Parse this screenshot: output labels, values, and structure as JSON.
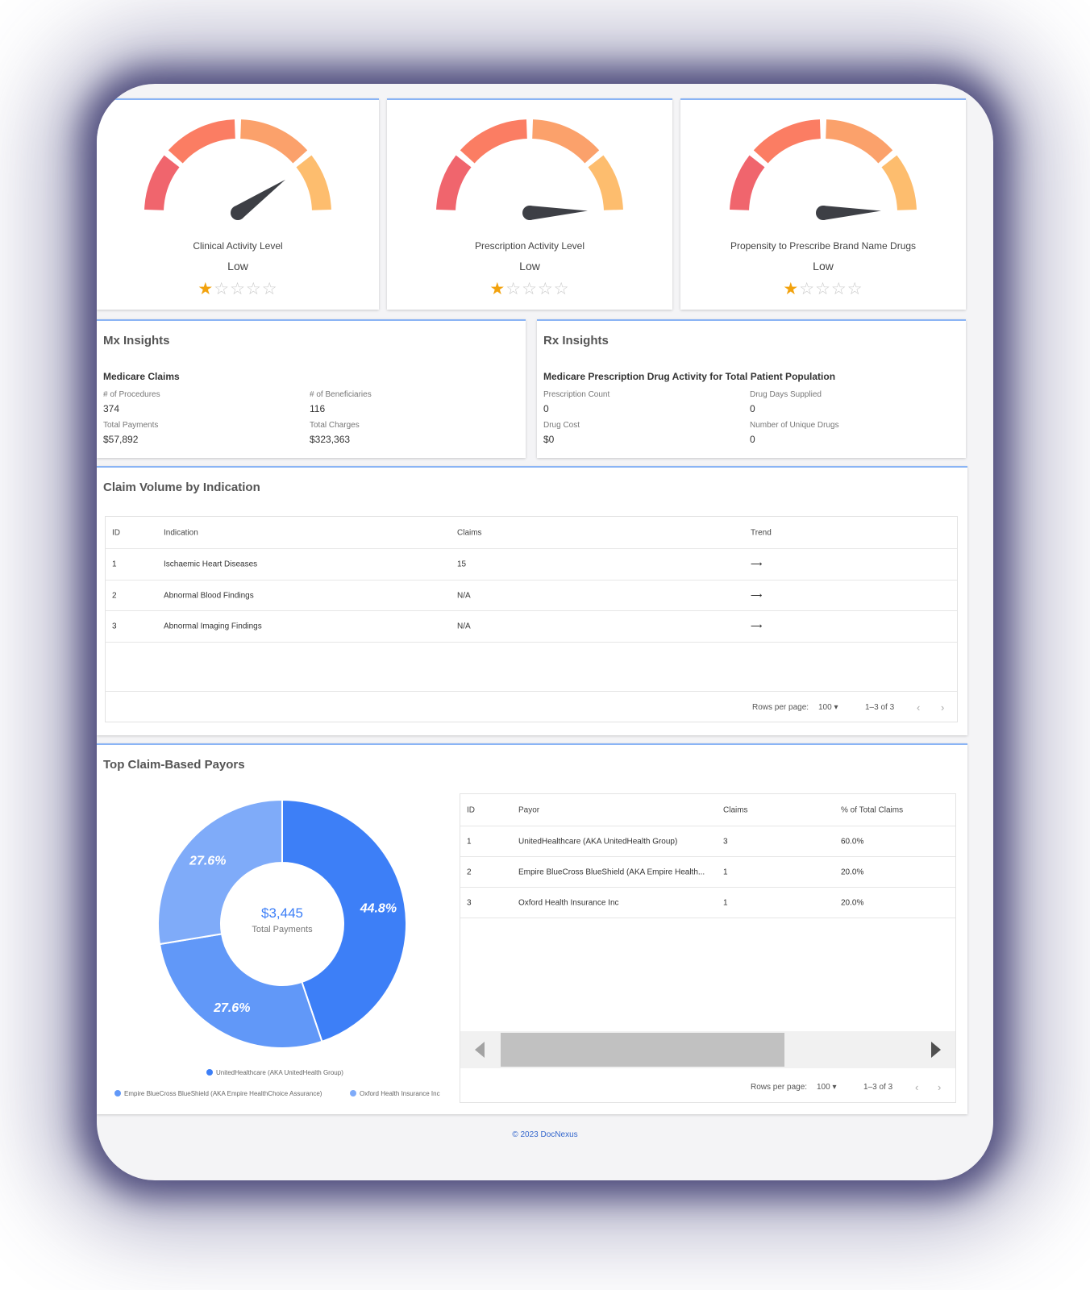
{
  "gauges": [
    {
      "title": "Clinical Activity Level",
      "level": "Low",
      "rating": 1,
      "max_rating": 5,
      "needle_angle_deg": 145
    },
    {
      "title": "Prescription Activity Level",
      "level": "Low",
      "rating": 1,
      "max_rating": 5,
      "needle_angle_deg": 178
    },
    {
      "title": "Propensity to Prescribe Brand Name Drugs",
      "level": "Low",
      "rating": 1,
      "max_rating": 5,
      "needle_angle_deg": 178
    }
  ],
  "mx": {
    "title": "Mx Insights",
    "subtitle": "Medicare Claims",
    "procedures_label": "# of Procedures",
    "procedures_value": "374",
    "beneficiaries_label": "# of Beneficiaries",
    "beneficiaries_value": "116",
    "payments_label": "Total Payments",
    "payments_value": "$57,892",
    "charges_label": "Total Charges",
    "charges_value": "$323,363"
  },
  "rx": {
    "title": "Rx Insights",
    "subtitle": "Medicare Prescription Drug Activity for Total Patient Population",
    "rx_count_label": "Prescription Count",
    "rx_count_value": "0",
    "days_label": "Drug Days Supplied",
    "days_value": "0",
    "cost_label": "Drug Cost",
    "cost_value": "$0",
    "unique_label": "Number of Unique Drugs",
    "unique_value": "0"
  },
  "claims": {
    "title": "Claim Volume by Indication",
    "headers": {
      "id": "ID",
      "indication": "Indication",
      "claims": "Claims",
      "trend": "Trend"
    },
    "rows": [
      {
        "id": "1",
        "indication": "Ischaemic Heart Diseases",
        "claims": "15",
        "trend": "⟶"
      },
      {
        "id": "2",
        "indication": "Abnormal Blood Findings",
        "claims": "N/A",
        "trend": "⟶"
      },
      {
        "id": "3",
        "indication": "Abnormal Imaging Findings",
        "claims": "N/A",
        "trend": "⟶"
      }
    ],
    "rows_per_page_label": "Rows per page:",
    "rows_per_page_value": "100",
    "range": "1–3 of 3"
  },
  "payors": {
    "title": "Top Claim-Based Payors",
    "center_value": "$3,445",
    "center_label": "Total Payments",
    "headers": {
      "id": "ID",
      "payor": "Payor",
      "claims": "Claims",
      "pct": "% of Total Claims"
    },
    "rows": [
      {
        "id": "1",
        "payor": "UnitedHealthcare (AKA UnitedHealth Group)",
        "claims": "3",
        "pct": "60.0%"
      },
      {
        "id": "2",
        "payor": "Empire BlueCross BlueShield (AKA Empire Health...",
        "claims": "1",
        "pct": "20.0%"
      },
      {
        "id": "3",
        "payor": "Oxford Health Insurance Inc",
        "claims": "1",
        "pct": "20.0%"
      }
    ],
    "rows_per_page_label": "Rows per page:",
    "rows_per_page_value": "100",
    "range": "1–3 of 3",
    "legend": [
      "UnitedHealthcare (AKA UnitedHealth Group)",
      "Empire BlueCross BlueShield (AKA Empire HealthChoice Assurance)",
      "Oxford Health Insurance Inc"
    ]
  },
  "chart_data": {
    "type": "pie",
    "title": "Top Claim-Based Payors",
    "categories": [
      "UnitedHealthcare (AKA UnitedHealth Group)",
      "Empire BlueCross BlueShield (AKA Empire HealthChoice Assurance)",
      "Oxford Health Insurance Inc"
    ],
    "values": [
      44.8,
      27.6,
      27.6
    ],
    "labels": [
      "44.8%",
      "27.6%",
      "27.6%"
    ],
    "colors": [
      "#3d7ff7",
      "#6198f8",
      "#7fabf9"
    ],
    "center_text": "$3,445",
    "center_subtext": "Total Payments"
  },
  "footer": "© 2023 DocNexus"
}
